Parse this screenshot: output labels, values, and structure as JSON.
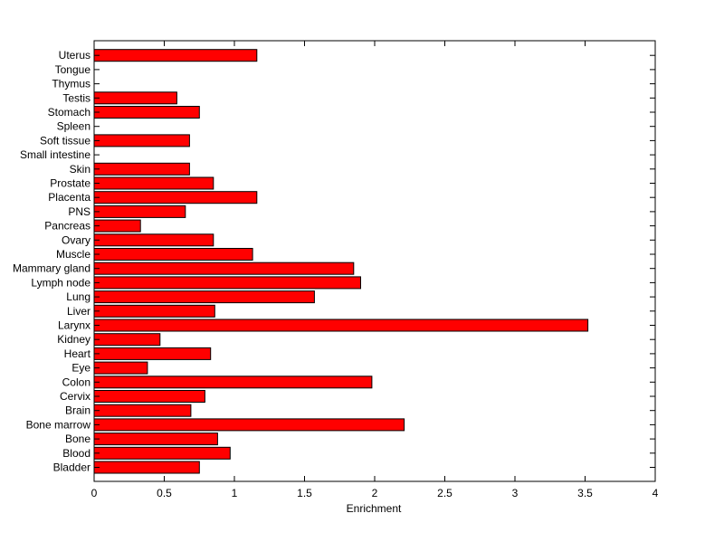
{
  "chart_data": {
    "type": "bar",
    "orientation": "horizontal",
    "title": "",
    "xlabel": "Enrichment",
    "ylabel": "",
    "xlim": [
      0,
      4
    ],
    "xticks": [
      "0",
      "0.5",
      "1",
      "1.5",
      "2",
      "2.5",
      "3",
      "3.5",
      "4"
    ],
    "grid": false,
    "bar_color": "#ff0000",
    "categories": [
      "Bladder",
      "Blood",
      "Bone",
      "Bone marrow",
      "Brain",
      "Cervix",
      "Colon",
      "Eye",
      "Heart",
      "Kidney",
      "Larynx",
      "Liver",
      "Lung",
      "Lymph node",
      "Mammary gland",
      "Muscle",
      "Ovary",
      "Pancreas",
      "PNS",
      "Placenta",
      "Prostate",
      "Skin",
      "Small intestine",
      "Soft tissue",
      "Spleen",
      "Stomach",
      "Testis",
      "Thymus",
      "Tongue",
      "Uterus"
    ],
    "values": [
      0.75,
      0.97,
      0.88,
      2.21,
      0.69,
      0.79,
      1.98,
      0.38,
      0.83,
      0.47,
      3.52,
      0.86,
      1.57,
      1.9,
      1.85,
      1.13,
      0.85,
      0.33,
      0.65,
      1.16,
      0.85,
      0.68,
      0,
      0.68,
      0,
      0.75,
      0.59,
      0,
      0,
      1.16
    ]
  }
}
